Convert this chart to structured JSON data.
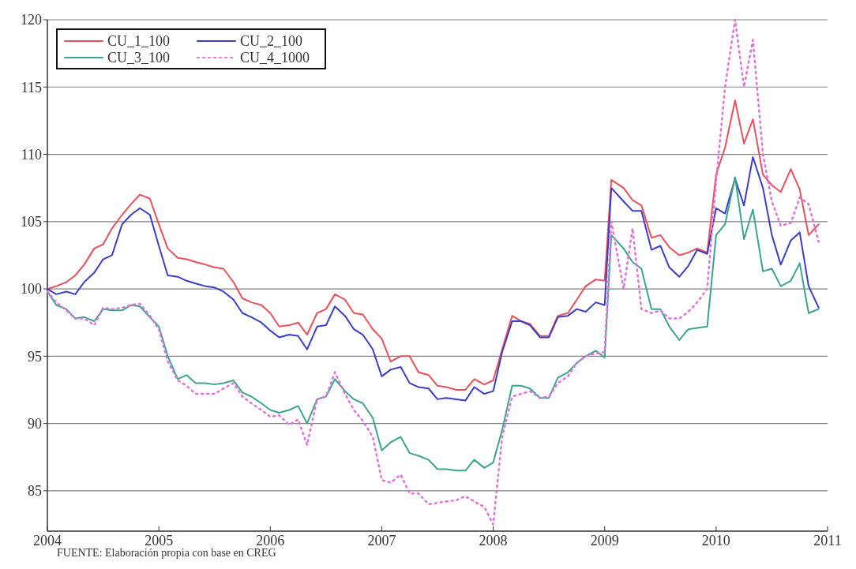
{
  "chart_data": {
    "type": "line",
    "x": [
      2004.0,
      2004.08,
      2004.17,
      2004.25,
      2004.33,
      2004.42,
      2004.5,
      2004.58,
      2004.67,
      2004.75,
      2004.83,
      2004.92,
      2005.0,
      2005.08,
      2005.17,
      2005.25,
      2005.33,
      2005.42,
      2005.5,
      2005.58,
      2005.67,
      2005.75,
      2005.83,
      2005.92,
      2006.0,
      2006.08,
      2006.17,
      2006.25,
      2006.33,
      2006.42,
      2006.5,
      2006.58,
      2006.67,
      2006.75,
      2006.83,
      2006.92,
      2007.0,
      2007.08,
      2007.17,
      2007.25,
      2007.33,
      2007.42,
      2007.5,
      2007.58,
      2007.67,
      2007.75,
      2007.83,
      2007.92,
      2008.0,
      2008.08,
      2008.17,
      2008.25,
      2008.33,
      2008.42,
      2008.5,
      2008.58,
      2008.67,
      2008.75,
      2008.83,
      2008.92,
      2009.0,
      2009.06,
      2009.17,
      2009.25,
      2009.33,
      2009.42,
      2009.5,
      2009.58,
      2009.67,
      2009.75,
      2009.83,
      2009.92,
      2010.0,
      2010.08,
      2010.17,
      2010.25,
      2010.33,
      2010.42,
      2010.5,
      2010.58,
      2010.67,
      2010.75,
      2010.83,
      2010.92
    ],
    "series": [
      {
        "name": "CU_1_100",
        "color": "#e8505a",
        "values": [
          100.0,
          100.2,
          100.5,
          101.0,
          101.8,
          103.0,
          103.3,
          104.5,
          105.5,
          106.3,
          107.0,
          106.7,
          104.8,
          103.0,
          102.3,
          102.2,
          102.0,
          101.8,
          101.6,
          101.5,
          100.5,
          99.3,
          99.0,
          98.8,
          98.2,
          97.2,
          97.3,
          97.5,
          96.6,
          98.2,
          98.5,
          99.6,
          99.2,
          98.2,
          98.1,
          97.0,
          96.3,
          94.6,
          95.0,
          95.0,
          93.8,
          93.6,
          92.8,
          92.7,
          92.5,
          92.5,
          93.3,
          92.9,
          93.2,
          95.5,
          98.0,
          97.6,
          97.4,
          96.5,
          96.5,
          98.0,
          98.2,
          99.2,
          100.2,
          100.7,
          100.6,
          108.1,
          107.5,
          106.6,
          106.2,
          103.8,
          104.0,
          103.1,
          102.5,
          102.7,
          103.0,
          102.7,
          108.5,
          110.5,
          114.0,
          110.8,
          112.6,
          108.5,
          107.7,
          107.2,
          108.9,
          107.4,
          104.0,
          104.8
        ]
      },
      {
        "name": "CU_2_100",
        "color": "#3c3cc8",
        "values": [
          100.0,
          99.6,
          99.8,
          99.6,
          100.5,
          101.2,
          102.2,
          102.5,
          104.8,
          105.5,
          106.0,
          105.5,
          103.2,
          101.0,
          100.9,
          100.6,
          100.4,
          100.2,
          100.1,
          99.8,
          99.2,
          98.2,
          97.9,
          97.5,
          96.9,
          96.4,
          96.6,
          96.5,
          95.5,
          97.2,
          97.3,
          98.7,
          98.0,
          97.0,
          96.6,
          95.5,
          93.5,
          94.0,
          94.2,
          93.0,
          92.7,
          92.6,
          91.8,
          91.9,
          91.8,
          91.7,
          92.7,
          92.2,
          92.4,
          95.3,
          97.6,
          97.6,
          97.3,
          96.4,
          96.4,
          97.9,
          98.0,
          98.5,
          98.3,
          99.0,
          98.8,
          107.5,
          106.5,
          105.8,
          105.8,
          102.9,
          103.2,
          101.6,
          100.9,
          101.7,
          102.9,
          102.6,
          106.0,
          105.6,
          108.2,
          106.2,
          109.8,
          107.5,
          104.0,
          101.8,
          103.6,
          104.2,
          100.2,
          98.6
        ]
      },
      {
        "name": "CU_3_100",
        "color": "#3aa58a",
        "values": [
          99.8,
          98.8,
          98.5,
          97.8,
          97.9,
          97.6,
          98.5,
          98.4,
          98.4,
          98.8,
          98.7,
          97.9,
          97.2,
          95.0,
          93.3,
          93.6,
          93.0,
          93.0,
          92.9,
          93.0,
          93.2,
          92.3,
          92.0,
          91.5,
          91.0,
          90.8,
          91.0,
          91.3,
          90.0,
          91.8,
          92.0,
          93.3,
          92.4,
          91.8,
          91.5,
          90.4,
          88.0,
          88.6,
          89.0,
          87.8,
          87.6,
          87.3,
          86.6,
          86.6,
          86.5,
          86.5,
          87.3,
          86.7,
          87.1,
          89.5,
          92.8,
          92.8,
          92.6,
          91.9,
          91.9,
          93.4,
          93.8,
          94.5,
          95.0,
          95.4,
          94.9,
          104.0,
          103.0,
          102.0,
          101.5,
          98.5,
          98.5,
          97.2,
          96.2,
          97.0,
          97.1,
          97.2,
          104.0,
          104.8,
          108.3,
          103.7,
          105.9,
          101.3,
          101.5,
          100.2,
          100.6,
          101.9,
          98.2,
          98.5
        ]
      },
      {
        "name": "CU_4_1000",
        "color": "#e070e0",
        "line_style": "dotted",
        "values": [
          99.8,
          99.0,
          98.4,
          97.8,
          97.8,
          97.3,
          98.6,
          98.5,
          98.6,
          98.8,
          98.9,
          98.0,
          97.0,
          94.6,
          93.2,
          92.8,
          92.2,
          92.2,
          92.2,
          92.6,
          93.0,
          92.0,
          91.5,
          91.0,
          90.5,
          90.6,
          89.9,
          90.3,
          88.4,
          91.8,
          92.0,
          93.8,
          92.2,
          91.0,
          90.2,
          89.0,
          85.8,
          85.6,
          86.2,
          84.8,
          84.8,
          84.0,
          84.1,
          84.2,
          84.3,
          84.6,
          84.2,
          83.8,
          82.5,
          89.0,
          92.0,
          92.2,
          92.4,
          91.9,
          92.0,
          93.0,
          93.5,
          94.5,
          95.0,
          95.2,
          95.3,
          105.0,
          100.0,
          104.5,
          98.5,
          98.2,
          98.4,
          97.8,
          97.8,
          98.3,
          99.0,
          100.0,
          108.0,
          115.0,
          120.0,
          115.0,
          118.5,
          110.0,
          106.5,
          104.7,
          104.9,
          106.8,
          106.3,
          103.5
        ]
      }
    ],
    "xlim": [
      2004,
      2011
    ],
    "xticks": [
      2004,
      2005,
      2006,
      2007,
      2008,
      2009,
      2010,
      2011
    ],
    "ylim": [
      82,
      120
    ],
    "yticks": [
      85,
      90,
      95,
      100,
      105,
      110,
      115,
      120
    ],
    "grid": "y",
    "legend": "top left",
    "annotations": [
      "FUENTE: Elaboración propia con base en CREG"
    ]
  }
}
